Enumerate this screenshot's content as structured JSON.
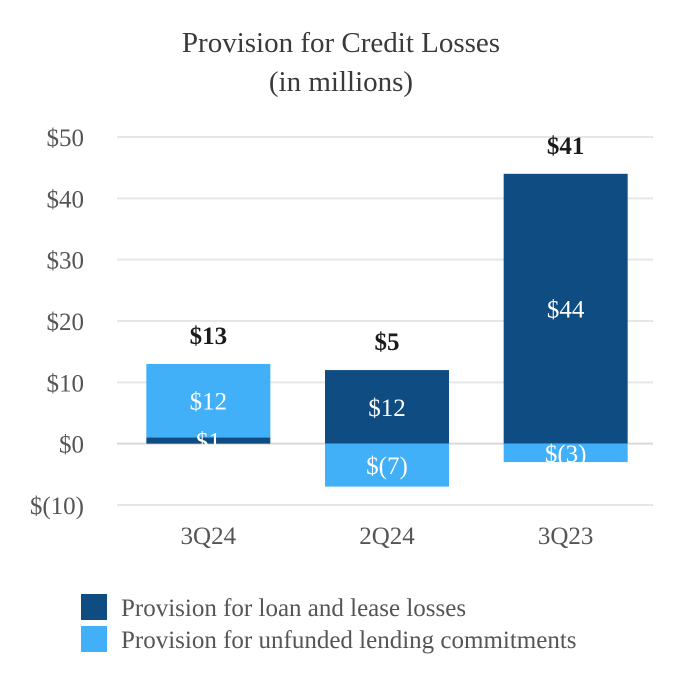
{
  "chart_data": {
    "type": "bar",
    "stacked": true,
    "title": "Provision for Credit Losses",
    "subtitle": "(in millions)",
    "categories": [
      "3Q24",
      "2Q24",
      "3Q23"
    ],
    "series": [
      {
        "name": "Provision for loan and lease losses",
        "color": "#0f4c81",
        "values": [
          1,
          12,
          44
        ],
        "labels": [
          "$1",
          "$12",
          "$44"
        ]
      },
      {
        "name": "Provision for unfunded lending commitments",
        "color": "#41b0f8",
        "values": [
          12,
          -7,
          -3
        ],
        "labels": [
          "$12",
          "$(7)",
          "$(3)"
        ]
      }
    ],
    "totals": [
      13,
      5,
      41
    ],
    "total_labels": [
      "$13",
      "$5",
      "$41"
    ],
    "ylim": [
      -10,
      50
    ],
    "yticks": [
      50,
      40,
      30,
      20,
      10,
      0,
      -10
    ],
    "ytick_labels": [
      "$50",
      "$40",
      "$30",
      "$20",
      "$10",
      "$0",
      "$(10)"
    ],
    "grid": true,
    "legend_position": "bottom-left"
  }
}
